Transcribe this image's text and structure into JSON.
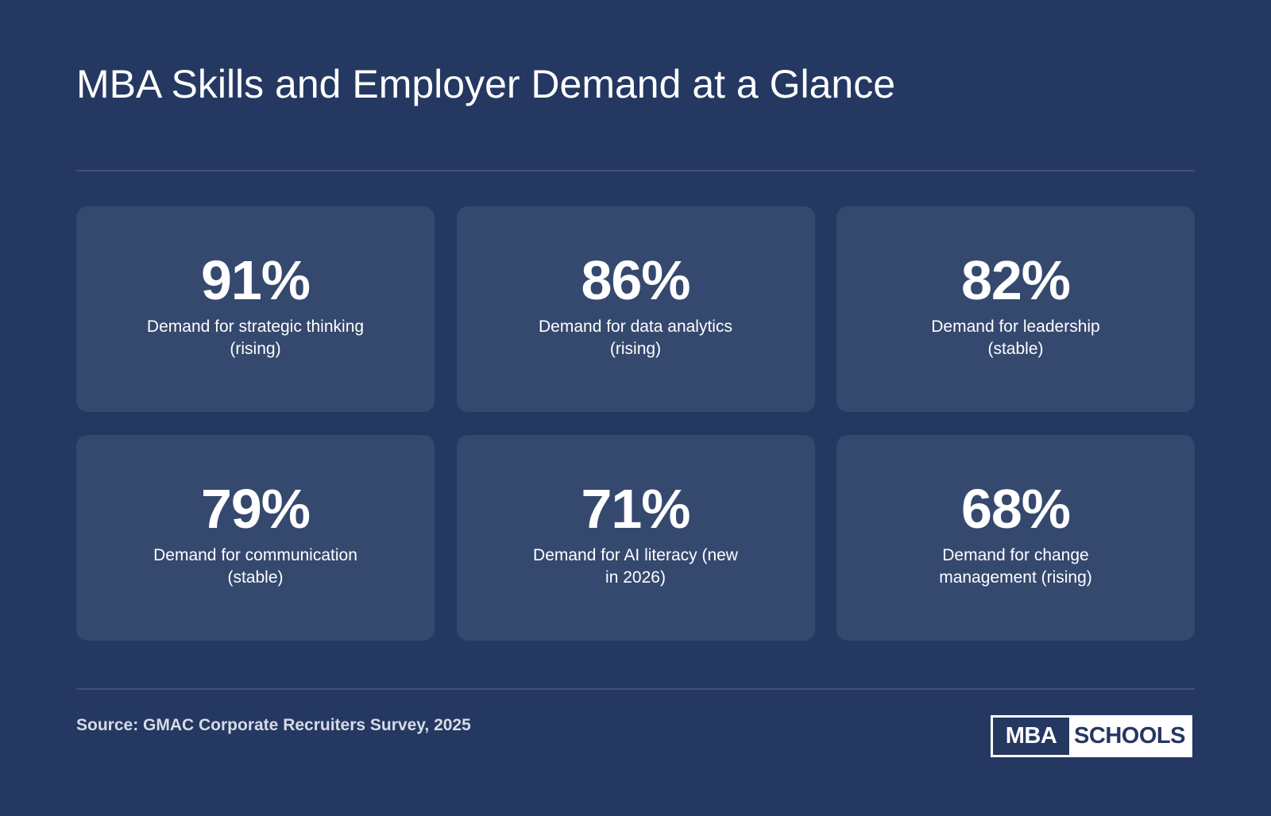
{
  "title": "MBA Skills and Employer Demand at a Glance",
  "stats": [
    {
      "value": "91%",
      "label": "Demand for strategic thinking (rising)"
    },
    {
      "value": "86%",
      "label": "Demand for data analytics (rising)"
    },
    {
      "value": "82%",
      "label": "Demand for leadership (stable)"
    },
    {
      "value": "79%",
      "label": "Demand for communication (stable)"
    },
    {
      "value": "71%",
      "label": "Demand for AI literacy (new in 2026)"
    },
    {
      "value": "68%",
      "label": "Demand for change management (rising)"
    }
  ],
  "source": "Source: GMAC Corporate Recruiters Survey, 2025",
  "logo": {
    "left_text": "MBA",
    "right_text": "SCHOOLS"
  },
  "colors": {
    "background": "#243861",
    "card": "#35496f",
    "text": "#ffffff",
    "source_text": "#d6dbe6"
  }
}
